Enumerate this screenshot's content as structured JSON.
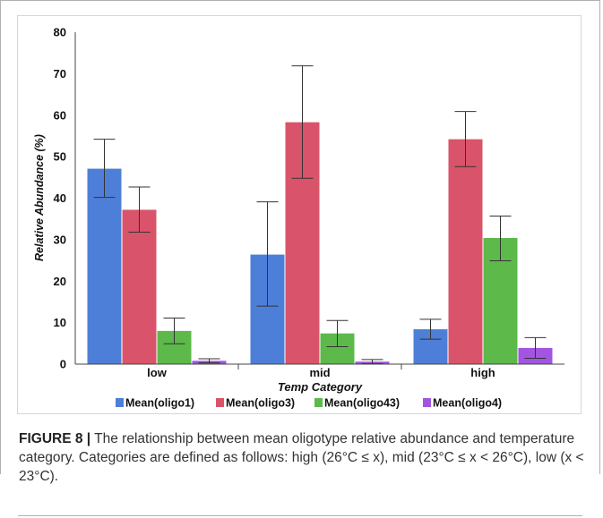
{
  "figure": {
    "label": "FIGURE 8 |",
    "caption": " The relationship between mean oligotype relative abundance and temperature category. Categories are defined as follows: high (26°C ≤ x), mid (23°C ≤ x < 26°C), low (x < 23°C)."
  },
  "chart_data": {
    "type": "bar",
    "title": "",
    "xlabel": "Temp Category",
    "ylabel": "Relative Abundance (%)",
    "ylim": [
      0,
      80
    ],
    "yticks": [
      0,
      10,
      20,
      30,
      40,
      50,
      60,
      70,
      80
    ],
    "categories": [
      "low",
      "mid",
      "high"
    ],
    "grid": false,
    "legend_position": "bottom",
    "series": [
      {
        "name": "Mean(oligo1)",
        "color": "#4e7fd8",
        "values": [
          47.1,
          26.4,
          8.4
        ],
        "err_low": [
          40.2,
          14.0,
          6.0
        ],
        "err_high": [
          54.2,
          39.1,
          10.8
        ]
      },
      {
        "name": "Mean(oligo3)",
        "color": "#d9546a",
        "values": [
          37.2,
          58.3,
          54.2
        ],
        "err_low": [
          31.8,
          44.8,
          47.6
        ],
        "err_high": [
          42.7,
          71.9,
          60.9
        ]
      },
      {
        "name": "Mean(oligo43)",
        "color": "#5cb94a",
        "values": [
          8.0,
          7.4,
          30.4
        ],
        "err_low": [
          4.9,
          4.2,
          24.9
        ],
        "err_high": [
          11.1,
          10.5,
          35.7
        ]
      },
      {
        "name": "Mean(oligo4)",
        "color": "#a155e0",
        "values": [
          0.8,
          0.6,
          3.9
        ],
        "err_low": [
          0.3,
          0.1,
          1.4
        ],
        "err_high": [
          1.3,
          1.1,
          6.4
        ]
      }
    ]
  }
}
